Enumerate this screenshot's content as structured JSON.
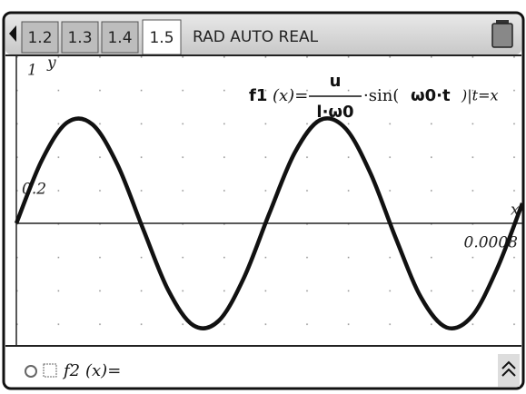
{
  "tabs": [
    "1.2",
    "1.3",
    "1.4",
    "1.5"
  ],
  "status": "RAD AUTO REAL",
  "graph": {
    "type": "line",
    "y_axis_label": "y",
    "x_axis_label": "x",
    "ymax_label": "1",
    "y_tick_label": "0.2",
    "xmax_label": "0.0008",
    "function_label": {
      "name": "f1",
      "argument": "(x)=",
      "numerator": "u",
      "denominator": "l·ω0",
      "operator": "·sin(",
      "inner": "ω0·t",
      "tail": ")|t=x"
    },
    "xlim": [
      0,
      0.0008
    ],
    "ylim": [
      -0.728,
      1
    ],
    "x": [
      0,
      4e-05,
      8e-05,
      0.00012,
      0.00016,
      0.0002,
      0.00024,
      0.00028,
      0.00032,
      0.00036,
      0.0004,
      0.00044,
      0.00048,
      0.00052,
      0.00056,
      0.0006,
      0.00064,
      0.00068,
      0.00072,
      0.00076,
      0.0008
    ],
    "values": [
      0,
      0.375,
      0.603,
      0.593,
      0.35,
      -0.03,
      -0.399,
      -0.611,
      -0.583,
      -0.324,
      0.06,
      0.422,
      0.618,
      0.57,
      0.299,
      -0.09,
      -0.445,
      -0.623,
      -0.557,
      -0.272,
      0.12
    ],
    "color": "#111111"
  },
  "entry": {
    "function": "f2",
    "argument": "(x)="
  }
}
